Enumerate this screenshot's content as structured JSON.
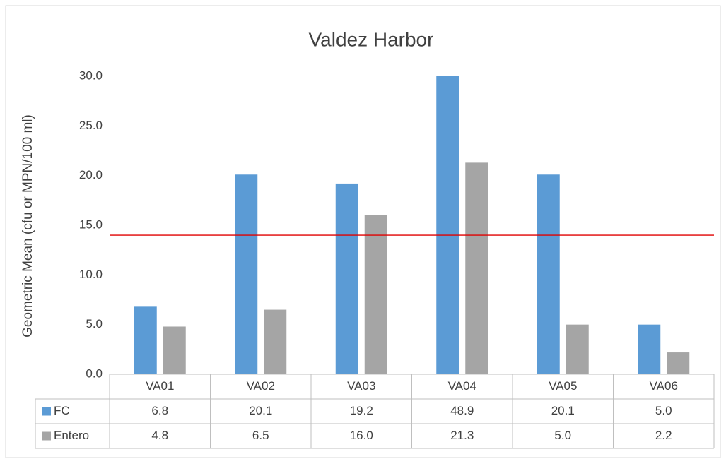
{
  "chart_data": {
    "type": "bar",
    "title": "Valdez Harbor",
    "y_axis_label": "Geometric Mean (cfu or MPN/100 ml)",
    "categories": [
      "VA01",
      "VA02",
      "VA03",
      "VA04",
      "VA05",
      "VA06"
    ],
    "series": [
      {
        "name": "FC",
        "color": "#5b9bd5",
        "values": [
          6.8,
          20.1,
          19.2,
          48.9,
          20.1,
          5.0
        ],
        "value_labels": [
          "6.8",
          "20.1",
          "19.2",
          "48.9",
          "20.1",
          "5.0"
        ]
      },
      {
        "name": "Entero",
        "color": "#a5a5a5",
        "values": [
          4.8,
          6.5,
          16.0,
          21.3,
          5.0,
          2.2
        ],
        "value_labels": [
          "4.8",
          "6.5",
          "16.0",
          "21.3",
          "5.0",
          "2.2"
        ]
      }
    ],
    "ylim": [
      0,
      30
    ],
    "yticks": [
      {
        "value": 0,
        "label": "0.0"
      },
      {
        "value": 5,
        "label": "5.0"
      },
      {
        "value": 10,
        "label": "10.0"
      },
      {
        "value": 15,
        "label": "15.0"
      },
      {
        "value": 20,
        "label": "20.0"
      },
      {
        "value": 25,
        "label": "25.0"
      },
      {
        "value": 30,
        "label": "30.0"
      }
    ],
    "grid": false,
    "reference_line": {
      "value": 14,
      "color": "#e00000"
    }
  }
}
